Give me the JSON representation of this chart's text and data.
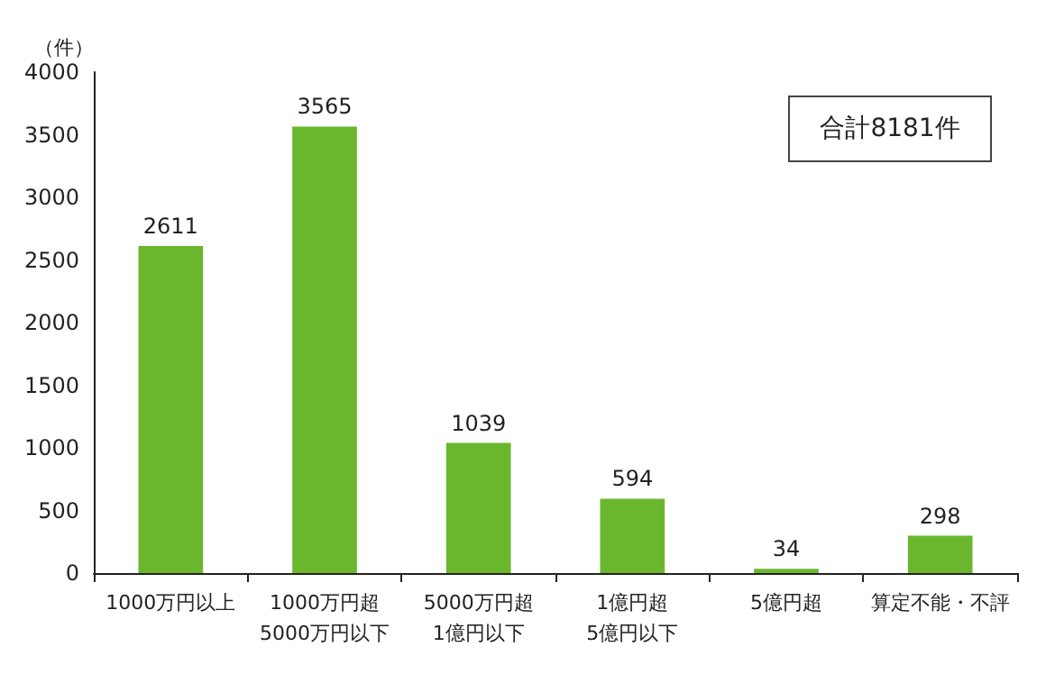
{
  "chart_data": {
    "type": "bar",
    "ylabel": "（件）",
    "categories": [
      "1000万円以上",
      "1000万円超\n5000万円以下",
      "5000万円超\n1億円以下",
      "1億円超\n5億円以下",
      "5億円超",
      "算定不能・不評"
    ],
    "values": [
      2611,
      3565,
      1039,
      594,
      34,
      298
    ],
    "color": "#6ab72e",
    "ylim": [
      0,
      4000
    ],
    "yticks": [
      0,
      500,
      1000,
      1500,
      2000,
      2500,
      3000,
      3500,
      4000
    ],
    "grid": false,
    "data_labels": true,
    "annotations": [
      "合計8181件"
    ]
  }
}
